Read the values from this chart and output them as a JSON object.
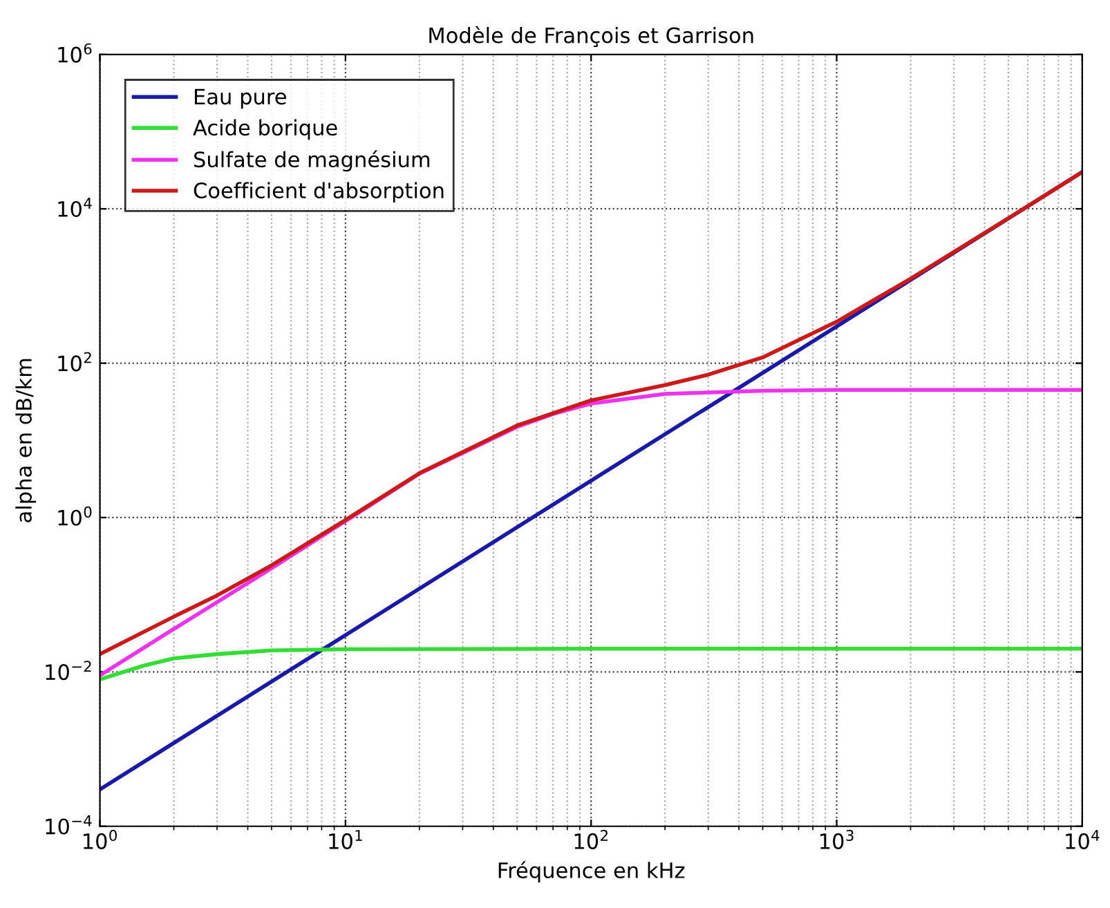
{
  "chart_data": {
    "type": "line",
    "title": "Modèle de François et Garrison",
    "xlabel": "Fréquence en kHz",
    "ylabel": "alpha en dB/km",
    "log": "xy",
    "grid": true,
    "legend": "top left",
    "line_style": "solid",
    "marker": "none",
    "xlim": [
      1,
      10000
    ],
    "ylim": [
      0.0001,
      1000000
    ],
    "xticks": [
      {
        "value": 1,
        "label": "10$^{0}$"
      },
      {
        "value": 10,
        "label": "10$^{1}$"
      },
      {
        "value": 100,
        "label": "10$^{2}$"
      },
      {
        "value": 1000,
        "label": "10$^{3}$"
      },
      {
        "value": 10000,
        "label": "10$^{4}$"
      }
    ],
    "yticks": [
      {
        "value": 0.0001,
        "label": "10$^{−4}$"
      },
      {
        "value": 0.01,
        "label": "10$^{−2}$"
      },
      {
        "value": 1,
        "label": "10$^{0}$"
      },
      {
        "value": 100,
        "label": "10$^{2}$"
      },
      {
        "value": 10000,
        "label": "10$^{4}$"
      },
      {
        "value": 1000000,
        "label": "10$^{6}$"
      }
    ],
    "series": [
      {
        "name": "Eau pure",
        "color": "#1a1aa8",
        "x": [
          1,
          10,
          100,
          1000,
          10000
        ],
        "values": [
          0.0003,
          0.03,
          3,
          300,
          30000
        ]
      },
      {
        "name": "Acide borique",
        "color": "#33dd33",
        "x": [
          1,
          1.5,
          2,
          3,
          5,
          10,
          100,
          1000,
          10000
        ],
        "values": [
          0.008,
          0.012,
          0.015,
          0.017,
          0.019,
          0.0197,
          0.02,
          0.02,
          0.02
        ]
      },
      {
        "name": "Sulfate de magnésium",
        "color": "#ee33ee",
        "x": [
          1,
          2,
          5,
          10,
          20,
          50,
          70,
          100,
          200,
          500,
          1000,
          10000
        ],
        "values": [
          0.009,
          0.036,
          0.22,
          0.9,
          3.7,
          15,
          22,
          30,
          40,
          44,
          45,
          45
        ]
      },
      {
        "name": "Coefficient d'absorption",
        "color": "#cc1a1a",
        "x": [
          1,
          2,
          3,
          5,
          10,
          20,
          50,
          100,
          200,
          300,
          500,
          1000,
          2000,
          5000,
          10000
        ],
        "values": [
          0.017,
          0.052,
          0.098,
          0.24,
          0.93,
          3.75,
          15.6,
          33,
          52,
          71,
          119,
          345,
          1245,
          7545,
          30000
        ]
      }
    ]
  }
}
